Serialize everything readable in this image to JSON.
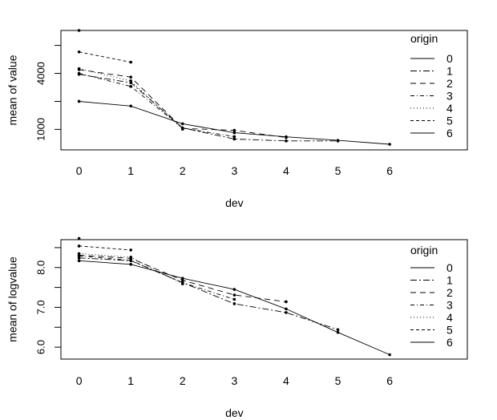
{
  "chart_data": [
    {
      "type": "line",
      "xlabel": "dev",
      "ylabel": "mean of  value",
      "x": [
        0,
        1,
        2,
        3,
        4,
        5,
        6
      ],
      "xlim": [
        -0.35,
        7.5
      ],
      "ylim": [
        -100,
        6300
      ],
      "y_ticks": [
        1000,
        2500,
        4000,
        5500
      ],
      "y_tick_labels": [
        "1000",
        "",
        "4000",
        ""
      ],
      "legend_title": "origin",
      "series": [
        {
          "name": "0",
          "dash": "",
          "values": [
            2500,
            2250,
            1300,
            820,
            600,
            410,
            200
          ]
        },
        {
          "name": "1",
          "dash": "8,3,2,3",
          "values": [
            3950,
            3500,
            1080,
            480,
            380,
            380,
            null
          ]
        },
        {
          "name": "2",
          "dash": "7,5",
          "values": [
            4200,
            3800,
            1050,
            950,
            560,
            null,
            null
          ]
        },
        {
          "name": "3",
          "dash": "5,3,1,3",
          "values": [
            4000,
            3300,
            1070,
            610,
            null,
            null,
            null
          ]
        },
        {
          "name": "4",
          "dash": "1,3",
          "values": [
            4250,
            3600,
            1010,
            null,
            null,
            null,
            null
          ]
        },
        {
          "name": "5",
          "dash": "4,3",
          "values": [
            5150,
            4600,
            null,
            null,
            null,
            null,
            null
          ]
        },
        {
          "name": "6",
          "dash": "",
          "values": [
            6300,
            null,
            null,
            null,
            null,
            null,
            null
          ]
        }
      ]
    },
    {
      "type": "line",
      "xlabel": "dev",
      "ylabel": "mean of  logvalue",
      "x": [
        0,
        1,
        2,
        3,
        4,
        5,
        6
      ],
      "xlim": [
        -0.35,
        7.5
      ],
      "ylim": [
        5.7,
        8.7
      ],
      "y_ticks": [
        6.0,
        6.5,
        7.0,
        7.5,
        8.0,
        8.5
      ],
      "y_tick_labels": [
        "6.0",
        "",
        "7.0",
        "",
        "8.0",
        ""
      ],
      "legend_title": "origin",
      "series": [
        {
          "name": "0",
          "dash": "",
          "values": [
            8.17,
            8.08,
            7.73,
            7.45,
            6.96,
            6.37,
            5.81
          ]
        },
        {
          "name": "1",
          "dash": "8,3,2,3",
          "values": [
            8.24,
            8.17,
            7.62,
            7.09,
            6.87,
            6.44,
            null
          ]
        },
        {
          "name": "2",
          "dash": "7,5",
          "values": [
            8.31,
            8.23,
            7.68,
            7.31,
            7.14,
            null,
            null
          ]
        },
        {
          "name": "3",
          "dash": "5,3,1,3",
          "values": [
            8.29,
            8.18,
            7.62,
            7.2,
            null,
            null,
            null
          ]
        },
        {
          "name": "4",
          "dash": "1,3",
          "values": [
            8.35,
            8.26,
            7.59,
            null,
            null,
            null,
            null
          ]
        },
        {
          "name": "5",
          "dash": "4,3",
          "values": [
            8.54,
            8.44,
            null,
            null,
            null,
            null,
            null
          ]
        },
        {
          "name": "6",
          "dash": "",
          "values": [
            8.73,
            null,
            null,
            null,
            null,
            null,
            null
          ]
        }
      ]
    }
  ]
}
